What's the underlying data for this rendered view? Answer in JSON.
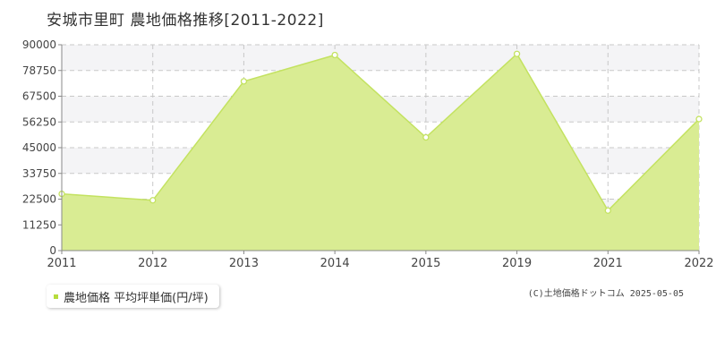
{
  "title": "安城市里町 農地価格推移[2011-2022]",
  "legend_label": "農地価格 平均坪単価(円/坪)",
  "copyright": "(C)土地価格ドットコム 2025-05-05",
  "colors": {
    "fill": "#d9ec93",
    "line": "#c3e260",
    "band": "#f4f4f6",
    "grid": "#c8c8c8",
    "legend_marker": "#b6dc3c"
  },
  "chart_data": {
    "type": "area",
    "categories": [
      "2011",
      "2012",
      "2013",
      "2014",
      "2015",
      "2019",
      "2021",
      "2022"
    ],
    "values": [
      24800,
      22000,
      74000,
      85500,
      49500,
      86000,
      17500,
      57500
    ],
    "ylim": [
      0,
      90000
    ],
    "yticks": [
      0,
      11250,
      22500,
      33750,
      45000,
      56250,
      67500,
      78750,
      90000
    ],
    "grid": true,
    "legend_position": "bottom-left"
  }
}
